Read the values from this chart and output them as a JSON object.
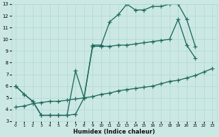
{
  "xlabel": "Humidex (Indice chaleur)",
  "xlim": [
    -0.5,
    23.5
  ],
  "ylim": [
    3,
    13
  ],
  "xticks": [
    0,
    1,
    2,
    3,
    4,
    5,
    6,
    7,
    8,
    9,
    10,
    11,
    12,
    13,
    14,
    15,
    16,
    17,
    18,
    19,
    20,
    21,
    22,
    23
  ],
  "yticks": [
    3,
    4,
    5,
    6,
    7,
    8,
    9,
    10,
    11,
    12,
    13
  ],
  "bg_color": "#cce8e4",
  "line_color": "#206b5e",
  "grid_color": "#add8d0",
  "line1_x": [
    0,
    1,
    2,
    3,
    4,
    5,
    6,
    7,
    8,
    9,
    10,
    11,
    12,
    13,
    14,
    15,
    16,
    17,
    18,
    19,
    20,
    21,
    22,
    23
  ],
  "line1_y": [
    6.0,
    5.3,
    4.7,
    3.5,
    3.5,
    3.5,
    3.5,
    3.6,
    5.0,
    9.5,
    9.5,
    11.5,
    12.1,
    13.0,
    12.5,
    12.5,
    12.8,
    12.8,
    13.0,
    13.0,
    11.7,
    9.4,
    null,
    null
  ],
  "line2_x": [
    0,
    1,
    2,
    3,
    4,
    5,
    6,
    7,
    8,
    9,
    10,
    11,
    12,
    13,
    14,
    15,
    16,
    17,
    18,
    19,
    20,
    21,
    22,
    23
  ],
  "line2_y": [
    6.0,
    5.3,
    4.7,
    3.5,
    3.5,
    3.5,
    3.5,
    7.3,
    5.0,
    9.4,
    9.4,
    9.4,
    9.5,
    9.5,
    9.6,
    9.7,
    9.8,
    9.9,
    10.0,
    11.7,
    9.5,
    8.4,
    null,
    null
  ],
  "line3_x": [
    0,
    1,
    2,
    3,
    4,
    5,
    6,
    7,
    8,
    9,
    10,
    11,
    12,
    13,
    14,
    15,
    16,
    17,
    18,
    19,
    20,
    21,
    22,
    23
  ],
  "line3_y": [
    4.2,
    4.3,
    4.5,
    4.6,
    4.7,
    4.7,
    4.8,
    4.9,
    5.0,
    5.1,
    5.3,
    5.4,
    5.6,
    5.7,
    5.8,
    5.9,
    6.0,
    6.2,
    6.4,
    6.5,
    6.7,
    6.9,
    7.2,
    7.5
  ],
  "marker_size": 4,
  "linewidth": 1.0
}
